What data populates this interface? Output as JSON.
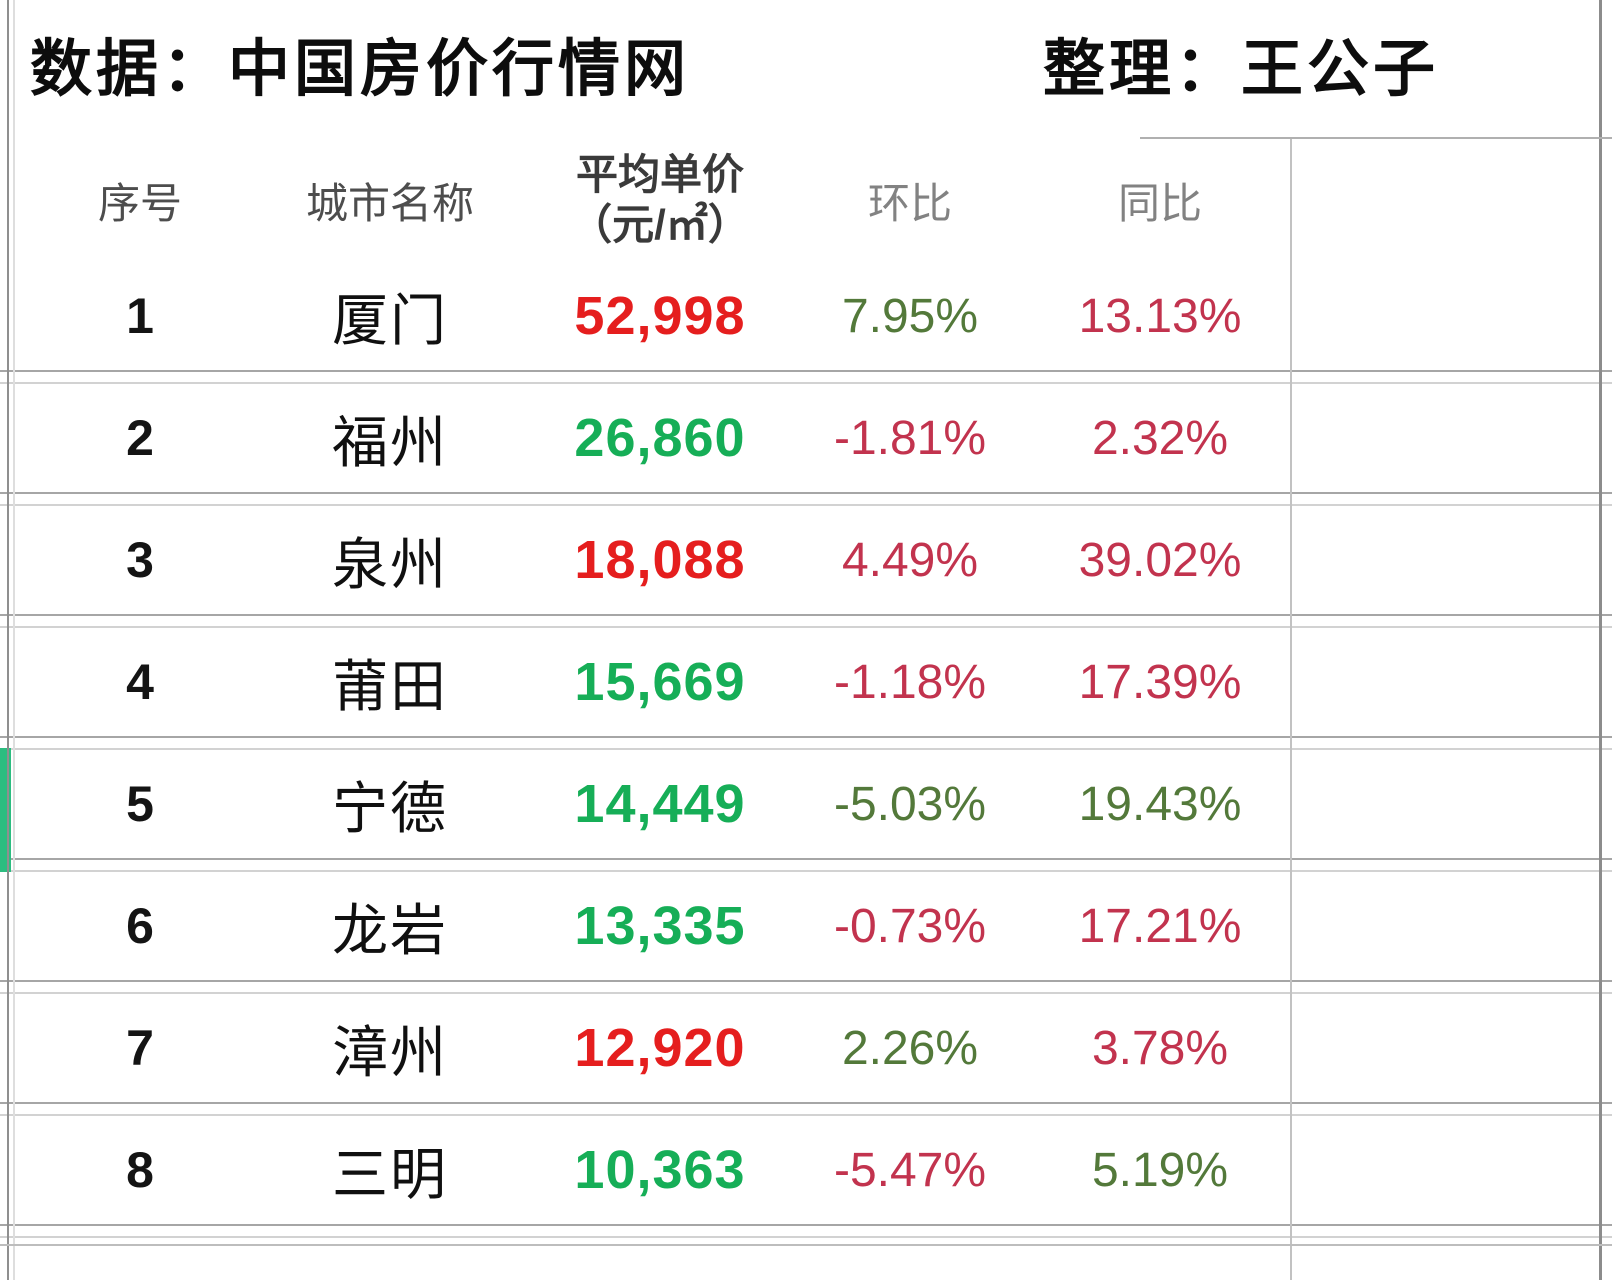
{
  "title": {
    "left": "数据：中国房价行情网",
    "right": "整理：王公子"
  },
  "table": {
    "headers": {
      "index": "序号",
      "city": "城市名称",
      "price_line1": "平均单价",
      "price_line2": "（元/㎡）",
      "mom": "环比",
      "yoy": "同比"
    },
    "rows": [
      {
        "index": "1",
        "city": "厦门",
        "price": "52,998",
        "price_color": "red",
        "mom": "7.95%",
        "mom_color": "green",
        "yoy": "13.13%",
        "yoy_color": "red",
        "selected": false
      },
      {
        "index": "2",
        "city": "福州",
        "price": "26,860",
        "price_color": "green",
        "mom": "-1.81%",
        "mom_color": "red",
        "yoy": "2.32%",
        "yoy_color": "red",
        "selected": false
      },
      {
        "index": "3",
        "city": "泉州",
        "price": "18,088",
        "price_color": "red",
        "mom": "4.49%",
        "mom_color": "red",
        "yoy": "39.02%",
        "yoy_color": "red",
        "selected": false
      },
      {
        "index": "4",
        "city": "莆田",
        "price": "15,669",
        "price_color": "green",
        "mom": "-1.18%",
        "mom_color": "red",
        "yoy": "17.39%",
        "yoy_color": "red",
        "selected": false
      },
      {
        "index": "5",
        "city": "宁德",
        "price": "14,449",
        "price_color": "green",
        "mom": "-5.03%",
        "mom_color": "green",
        "yoy": "19.43%",
        "yoy_color": "green",
        "selected": true
      },
      {
        "index": "6",
        "city": "龙岩",
        "price": "13,335",
        "price_color": "green",
        "mom": "-0.73%",
        "mom_color": "red",
        "yoy": "17.21%",
        "yoy_color": "red",
        "selected": false
      },
      {
        "index": "7",
        "city": "漳州",
        "price": "12,920",
        "price_color": "red",
        "mom": "2.26%",
        "mom_color": "green",
        "yoy": "3.78%",
        "yoy_color": "red",
        "selected": false
      },
      {
        "index": "8",
        "city": "三明",
        "price": "10,363",
        "price_color": "green",
        "mom": "-5.47%",
        "mom_color": "red",
        "yoy": "5.19%",
        "yoy_color": "green",
        "selected": false
      }
    ]
  },
  "colors": {
    "price_up_red": "#e51e1e",
    "price_down_green": "#16ae57",
    "pct_red": "#c2334e",
    "pct_green": "#53793a",
    "selection_green": "#2cbd80",
    "gridline_gray": "#a6a6a6",
    "header_text_gray": "#828282"
  }
}
